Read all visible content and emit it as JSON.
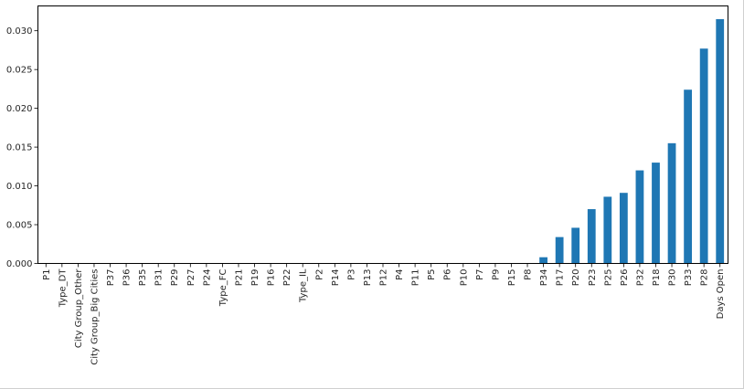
{
  "chart_data": {
    "type": "bar",
    "categories": [
      "P1",
      "Type_DT",
      "City Group_Other",
      "City Group_Big Cities",
      "P37",
      "P36",
      "P35",
      "P31",
      "P29",
      "P27",
      "P24",
      "Type_FC",
      "P21",
      "P19",
      "P16",
      "P22",
      "Type_IL",
      "P2",
      "P14",
      "P3",
      "P13",
      "P12",
      "P4",
      "P11",
      "P5",
      "P6",
      "P10",
      "P7",
      "P9",
      "P15",
      "P8",
      "P34",
      "P17",
      "P20",
      "P23",
      "P25",
      "P26",
      "P32",
      "P18",
      "P30",
      "P33",
      "P28",
      "Days Open"
    ],
    "values": [
      0,
      0,
      0,
      0,
      0,
      0,
      0,
      0,
      0,
      0,
      0,
      0,
      0,
      0,
      0,
      0,
      0,
      0,
      0,
      0,
      0,
      0,
      0,
      0,
      0,
      0,
      0,
      0,
      0,
      0,
      0,
      0.0008,
      0.0034,
      0.0046,
      0.007,
      0.0086,
      0.0091,
      0.012,
      0.013,
      0.0155,
      0.0224,
      0.0277,
      0.0315
    ],
    "title": "",
    "xlabel": "",
    "ylabel": "",
    "ylim": [
      0,
      0.0332
    ],
    "yticks": [
      "0.000",
      "0.005",
      "0.010",
      "0.015",
      "0.020",
      "0.025",
      "0.030"
    ],
    "ytick_values": [
      0,
      0.005,
      0.01,
      0.015,
      0.02,
      0.025,
      0.03
    ],
    "grid": false,
    "bar_color": "#1f77b4"
  }
}
